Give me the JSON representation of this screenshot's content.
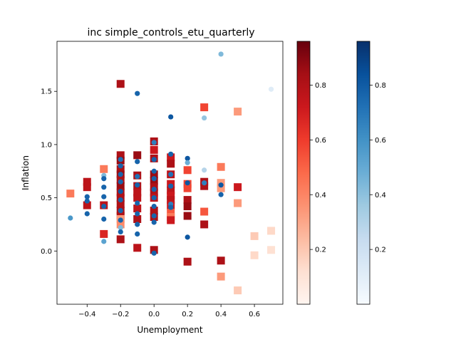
{
  "chart_data": {
    "type": "scatter",
    "title": "inc simple_controls_etu_quarterly",
    "xlabel": "Unemployment",
    "ylabel": "Inflation",
    "xlim": [
      -0.58,
      0.77
    ],
    "ylim": [
      -0.5,
      1.97
    ],
    "xticks": [
      {
        "value": -0.4,
        "label": "−0.4"
      },
      {
        "value": -0.2,
        "label": "−0.2"
      },
      {
        "value": 0.0,
        "label": "0.0"
      },
      {
        "value": 0.2,
        "label": "0.2"
      },
      {
        "value": 0.4,
        "label": "0.4"
      },
      {
        "value": 0.6,
        "label": "0.6"
      }
    ],
    "yticks": [
      {
        "value": 0.0,
        "label": "0.0"
      },
      {
        "value": 0.5,
        "label": "0.5"
      },
      {
        "value": 1.0,
        "label": "1.0"
      },
      {
        "value": 1.5,
        "label": "1.5"
      }
    ],
    "grid": false,
    "series": [
      {
        "marker": "square",
        "colormap": "Reds",
        "points": [
          {
            "x": -0.2,
            "y": 1.57,
            "c": 0.85
          },
          {
            "x": 0.3,
            "y": 1.35,
            "c": 0.6
          },
          {
            "x": 0.5,
            "y": 1.31,
            "c": 0.35
          },
          {
            "x": 0.0,
            "y": 1.03,
            "c": 0.85
          },
          {
            "x": 0.0,
            "y": 0.95,
            "c": 0.75
          },
          {
            "x": -0.2,
            "y": 0.9,
            "c": 0.85
          },
          {
            "x": -0.1,
            "y": 0.9,
            "c": 0.9
          },
          {
            "x": -0.2,
            "y": 0.85,
            "c": 0.9
          },
          {
            "x": 0.1,
            "y": 0.88,
            "c": 0.75
          },
          {
            "x": 0.0,
            "y": 0.87,
            "c": 0.85
          },
          {
            "x": 0.1,
            "y": 0.82,
            "c": 0.85
          },
          {
            "x": 0.4,
            "y": 0.79,
            "c": 0.45
          },
          {
            "x": -0.3,
            "y": 0.77,
            "c": 0.45
          },
          {
            "x": 0.2,
            "y": 0.76,
            "c": 0.6
          },
          {
            "x": -0.2,
            "y": 0.77,
            "c": 0.85
          },
          {
            "x": -0.2,
            "y": 0.72,
            "c": 0.9
          },
          {
            "x": 0.1,
            "y": 0.72,
            "c": 0.8
          },
          {
            "x": 0.0,
            "y": 0.72,
            "c": 0.9
          },
          {
            "x": -0.1,
            "y": 0.71,
            "c": 0.85
          },
          {
            "x": -0.2,
            "y": 0.67,
            "c": 0.85
          },
          {
            "x": 0.0,
            "y": 0.66,
            "c": 0.9
          },
          {
            "x": -0.4,
            "y": 0.65,
            "c": 0.8
          },
          {
            "x": 0.3,
            "y": 0.65,
            "c": 0.85
          },
          {
            "x": 0.4,
            "y": 0.64,
            "c": 0.35
          },
          {
            "x": 0.2,
            "y": 0.63,
            "c": 0.6
          },
          {
            "x": 0.1,
            "y": 0.63,
            "c": 0.75
          },
          {
            "x": -0.2,
            "y": 0.61,
            "c": 0.9
          },
          {
            "x": 0.3,
            "y": 0.61,
            "c": 0.85
          },
          {
            "x": -0.1,
            "y": 0.61,
            "c": 0.85
          },
          {
            "x": 0.0,
            "y": 0.6,
            "c": 0.85
          },
          {
            "x": -0.4,
            "y": 0.6,
            "c": 0.8
          },
          {
            "x": 0.5,
            "y": 0.6,
            "c": 0.75
          },
          {
            "x": 0.4,
            "y": 0.59,
            "c": 0.35
          },
          {
            "x": 0.2,
            "y": 0.59,
            "c": 0.6
          },
          {
            "x": 0.1,
            "y": 0.57,
            "c": 0.8
          },
          {
            "x": -0.2,
            "y": 0.55,
            "c": 0.85
          },
          {
            "x": -0.1,
            "y": 0.55,
            "c": 0.8
          },
          {
            "x": 0.0,
            "y": 0.55,
            "c": 0.85
          },
          {
            "x": -0.5,
            "y": 0.54,
            "c": 0.45
          },
          {
            "x": 0.1,
            "y": 0.52,
            "c": 0.75
          },
          {
            "x": -0.2,
            "y": 0.5,
            "c": 0.85
          },
          {
            "x": -0.1,
            "y": 0.5,
            "c": 0.8
          },
          {
            "x": 0.0,
            "y": 0.5,
            "c": 0.8
          },
          {
            "x": 0.1,
            "y": 0.48,
            "c": 0.8
          },
          {
            "x": 0.2,
            "y": 0.48,
            "c": 0.85
          },
          {
            "x": 0.5,
            "y": 0.45,
            "c": 0.35
          },
          {
            "x": -0.4,
            "y": 0.43,
            "c": 0.8
          },
          {
            "x": -0.3,
            "y": 0.43,
            "c": 0.8
          },
          {
            "x": -0.2,
            "y": 0.44,
            "c": 0.85
          },
          {
            "x": 0.1,
            "y": 0.43,
            "c": 0.75
          },
          {
            "x": 0.2,
            "y": 0.42,
            "c": 0.9
          },
          {
            "x": -0.1,
            "y": 0.4,
            "c": 0.8
          },
          {
            "x": -0.2,
            "y": 0.38,
            "c": 0.85
          },
          {
            "x": 0.0,
            "y": 0.38,
            "c": 0.85
          },
          {
            "x": 0.3,
            "y": 0.37,
            "c": 0.55
          },
          {
            "x": 0.1,
            "y": 0.36,
            "c": 0.55
          },
          {
            "x": -0.2,
            "y": 0.33,
            "c": 0.85
          },
          {
            "x": 0.2,
            "y": 0.33,
            "c": 0.9
          },
          {
            "x": 0.0,
            "y": 0.32,
            "c": 0.85
          },
          {
            "x": 0.1,
            "y": 0.32,
            "c": 0.45
          },
          {
            "x": -0.2,
            "y": 0.3,
            "c": 0.35
          },
          {
            "x": -0.1,
            "y": 0.3,
            "c": 0.85
          },
          {
            "x": 0.1,
            "y": 0.29,
            "c": 0.75
          },
          {
            "x": 0.3,
            "y": 0.25,
            "c": 0.85
          },
          {
            "x": -0.2,
            "y": 0.25,
            "c": 0.4
          },
          {
            "x": 0.7,
            "y": 0.19,
            "c": 0.15
          },
          {
            "x": -0.3,
            "y": 0.16,
            "c": 0.7
          },
          {
            "x": 0.6,
            "y": 0.14,
            "c": 0.2
          },
          {
            "x": -0.2,
            "y": 0.11,
            "c": 0.85
          },
          {
            "x": -0.1,
            "y": 0.03,
            "c": 0.8
          },
          {
            "x": 0.7,
            "y": 0.01,
            "c": 0.12
          },
          {
            "x": 0.0,
            "y": 0.01,
            "c": 0.85
          },
          {
            "x": 0.6,
            "y": -0.04,
            "c": 0.15
          },
          {
            "x": 0.4,
            "y": -0.09,
            "c": 0.85
          },
          {
            "x": 0.2,
            "y": -0.1,
            "c": 0.85
          },
          {
            "x": 0.4,
            "y": -0.24,
            "c": 0.35
          },
          {
            "x": 0.5,
            "y": -0.37,
            "c": 0.2
          }
        ]
      },
      {
        "marker": "circle",
        "colormap": "Blues",
        "points": [
          {
            "x": 0.4,
            "y": 1.85,
            "c": 0.45
          },
          {
            "x": 0.7,
            "y": 1.52,
            "c": 0.12
          },
          {
            "x": -0.1,
            "y": 1.48,
            "c": 0.8
          },
          {
            "x": 0.1,
            "y": 1.26,
            "c": 0.85
          },
          {
            "x": 0.3,
            "y": 1.25,
            "c": 0.4
          },
          {
            "x": 0.0,
            "y": 1.02,
            "c": 0.7
          },
          {
            "x": 0.1,
            "y": 0.91,
            "c": 0.8
          },
          {
            "x": 0.2,
            "y": 0.87,
            "c": 0.85
          },
          {
            "x": -0.2,
            "y": 0.86,
            "c": 0.75
          },
          {
            "x": -0.1,
            "y": 0.84,
            "c": 0.8
          },
          {
            "x": 0.0,
            "y": 0.86,
            "c": 0.8
          },
          {
            "x": 0.2,
            "y": 0.83,
            "c": 0.5
          },
          {
            "x": -0.2,
            "y": 0.8,
            "c": 0.8
          },
          {
            "x": 0.3,
            "y": 0.76,
            "c": 0.3
          },
          {
            "x": 0.0,
            "y": 0.75,
            "c": 0.8
          },
          {
            "x": -0.2,
            "y": 0.72,
            "c": 0.8
          },
          {
            "x": 0.1,
            "y": 0.72,
            "c": 0.75
          },
          {
            "x": -0.3,
            "y": 0.71,
            "c": 0.45
          },
          {
            "x": -0.1,
            "y": 0.7,
            "c": 0.75
          },
          {
            "x": -0.3,
            "y": 0.68,
            "c": 0.8
          },
          {
            "x": 0.0,
            "y": 0.68,
            "c": 0.8
          },
          {
            "x": -0.2,
            "y": 0.65,
            "c": 0.8
          },
          {
            "x": 0.2,
            "y": 0.64,
            "c": 0.85
          },
          {
            "x": 0.3,
            "y": 0.64,
            "c": 0.7
          },
          {
            "x": -0.1,
            "y": 0.62,
            "c": 0.8
          },
          {
            "x": 0.4,
            "y": 0.62,
            "c": 0.85
          },
          {
            "x": 0.1,
            "y": 0.61,
            "c": 0.8
          },
          {
            "x": -0.3,
            "y": 0.6,
            "c": 0.8
          },
          {
            "x": 0.0,
            "y": 0.58,
            "c": 0.8
          },
          {
            "x": -0.2,
            "y": 0.56,
            "c": 0.85
          },
          {
            "x": 0.4,
            "y": 0.53,
            "c": 0.8
          },
          {
            "x": -0.4,
            "y": 0.51,
            "c": 0.8
          },
          {
            "x": -0.3,
            "y": 0.51,
            "c": 0.8
          },
          {
            "x": 0.0,
            "y": 0.5,
            "c": 0.8
          },
          {
            "x": -0.2,
            "y": 0.48,
            "c": 0.8
          },
          {
            "x": -0.4,
            "y": 0.47,
            "c": 0.8
          },
          {
            "x": -0.1,
            "y": 0.45,
            "c": 0.8
          },
          {
            "x": 0.1,
            "y": 0.44,
            "c": 0.7
          },
          {
            "x": -0.3,
            "y": 0.42,
            "c": 0.8
          },
          {
            "x": 0.0,
            "y": 0.42,
            "c": 0.8
          },
          {
            "x": 0.1,
            "y": 0.41,
            "c": 0.8
          },
          {
            "x": -0.2,
            "y": 0.38,
            "c": 0.8
          },
          {
            "x": -0.4,
            "y": 0.35,
            "c": 0.8
          },
          {
            "x": -0.1,
            "y": 0.35,
            "c": 0.8
          },
          {
            "x": 0.0,
            "y": 0.33,
            "c": 0.8
          },
          {
            "x": -0.5,
            "y": 0.31,
            "c": 0.6
          },
          {
            "x": -0.3,
            "y": 0.3,
            "c": 0.8
          },
          {
            "x": -0.2,
            "y": 0.29,
            "c": 0.8
          },
          {
            "x": 0.0,
            "y": 0.27,
            "c": 0.8
          },
          {
            "x": -0.1,
            "y": 0.25,
            "c": 0.8
          },
          {
            "x": -0.2,
            "y": 0.22,
            "c": 0.45
          },
          {
            "x": -0.2,
            "y": 0.18,
            "c": 0.8
          },
          {
            "x": -0.1,
            "y": 0.16,
            "c": 0.8
          },
          {
            "x": 0.2,
            "y": 0.13,
            "c": 0.85
          },
          {
            "x": -0.3,
            "y": 0.09,
            "c": 0.55
          },
          {
            "x": 0.0,
            "y": -0.02,
            "c": 0.8
          }
        ]
      }
    ],
    "colorbars": [
      {
        "colormap": "Reds",
        "range": [
          0,
          0.96
        ],
        "ticks": [
          {
            "value": 0.2,
            "label": "0.2"
          },
          {
            "value": 0.4,
            "label": "0.4"
          },
          {
            "value": 0.6,
            "label": "0.6"
          },
          {
            "value": 0.8,
            "label": "0.8"
          }
        ]
      },
      {
        "colormap": "Blues",
        "range": [
          0,
          0.96
        ],
        "ticks": [
          {
            "value": 0.2,
            "label": "0.2"
          },
          {
            "value": 0.4,
            "label": "0.4"
          },
          {
            "value": 0.6,
            "label": "0.6"
          },
          {
            "value": 0.8,
            "label": "0.8"
          }
        ]
      }
    ]
  },
  "colors": {
    "reds": [
      "#fff5f0",
      "#fee0d2",
      "#fcbba1",
      "#fc9272",
      "#fb6a4a",
      "#ef3b2c",
      "#cb181d",
      "#a50f15",
      "#67000d"
    ],
    "blues": [
      "#f7fbff",
      "#deebf7",
      "#c6dbef",
      "#9ecae1",
      "#6baed6",
      "#4292c6",
      "#2171b5",
      "#08519c",
      "#08306b"
    ]
  }
}
